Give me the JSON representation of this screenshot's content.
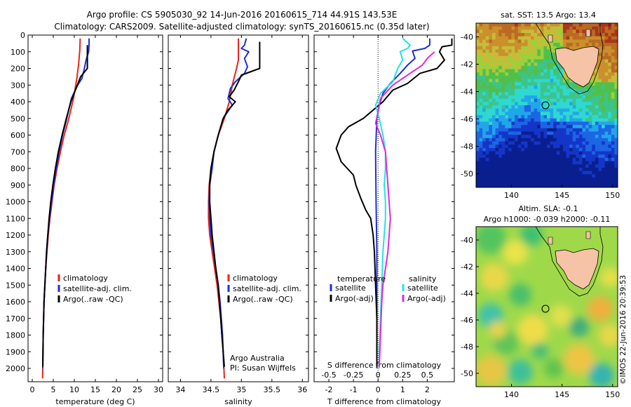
{
  "header": {
    "title_line1": "Argo profile: CS 5905030_92 14-Jun-2016 20160615_714 44.91S 143.53E",
    "title_line2": "Climatology: CARS2009. Satellite-adjusted climatology: synTS_20160615.nc (0.35d later)"
  },
  "credit": "©IMOS 22-Jun-2016 20:39:53",
  "colors": {
    "climatology": "#e8231b",
    "satellite": "#1d2fd6",
    "argo": "#000000",
    "salinity_satellite": "#22e2e6",
    "salinity_argo": "#e02ad8"
  },
  "chart_data": [
    {
      "type": "line",
      "name": "temperature-profile",
      "xlabel": "temperature (deg C)",
      "ylabel": "",
      "xlim": [
        -1,
        31
      ],
      "ylim": [
        2080,
        0
      ],
      "xticks": [
        0,
        5,
        10,
        15,
        20,
        25,
        30
      ],
      "yticks": [
        0,
        100,
        200,
        300,
        400,
        500,
        600,
        700,
        800,
        900,
        1000,
        1100,
        1200,
        1300,
        1400,
        1500,
        1600,
        1700,
        1800,
        1900,
        2000
      ],
      "legend": [
        "climatology",
        "satellite-adj. clim.",
        "Argo(..raw -QC)"
      ],
      "series": [
        {
          "name": "climatology",
          "color": "#e8231b",
          "points": [
            [
              11.4,
              20
            ],
            [
              11.3,
              90
            ],
            [
              11,
              180
            ],
            [
              10.6,
              260
            ],
            [
              9.8,
              380
            ],
            [
              8.7,
              500
            ],
            [
              7.6,
              600
            ],
            [
              6.7,
              700
            ],
            [
              5.9,
              800
            ],
            [
              5.2,
              900
            ],
            [
              4.7,
              1000
            ],
            [
              4.2,
              1100
            ],
            [
              3.8,
              1200
            ],
            [
              3.5,
              1300
            ],
            [
              3.2,
              1400
            ],
            [
              3,
              1500
            ],
            [
              2.8,
              1600
            ],
            [
              2.7,
              1700
            ],
            [
              2.6,
              1800
            ],
            [
              2.55,
              1900
            ],
            [
              2.5,
              2000
            ],
            [
              2.45,
              2060
            ]
          ]
        },
        {
          "name": "satellite-adj. clim.",
          "color": "#1d2fd6",
          "points": [
            [
              13.5,
              20
            ],
            [
              13.5,
              60
            ],
            [
              13.4,
              100
            ],
            [
              12.8,
              150
            ],
            [
              12.3,
              210
            ],
            [
              11.8,
              260
            ],
            [
              10.8,
              300
            ],
            [
              9.3,
              380
            ],
            [
              8.2,
              500
            ],
            [
              7.2,
              600
            ],
            [
              6.4,
              700
            ],
            [
              5.7,
              800
            ],
            [
              5.1,
              900
            ],
            [
              4.6,
              1000
            ],
            [
              4.1,
              1100
            ],
            [
              3.7,
              1200
            ],
            [
              3.4,
              1300
            ],
            [
              3.2,
              1400
            ],
            [
              3,
              1500
            ],
            [
              2.8,
              1600
            ],
            [
              2.7,
              1700
            ],
            [
              2.6,
              1800
            ],
            [
              2.55,
              1900
            ],
            [
              2.5,
              2000
            ]
          ]
        },
        {
          "name": "Argo(..raw -QC)",
          "color": "#000000",
          "points": [
            [
              13.1,
              60
            ],
            [
              13.1,
              200
            ],
            [
              11.5,
              250
            ],
            [
              10.4,
              320
            ],
            [
              9.2,
              400
            ],
            [
              8.1,
              500
            ],
            [
              7.1,
              600
            ],
            [
              6.2,
              700
            ],
            [
              5.5,
              800
            ],
            [
              4.9,
              900
            ],
            [
              4.4,
              1000
            ],
            [
              4,
              1100
            ],
            [
              3.7,
              1200
            ],
            [
              3.4,
              1300
            ],
            [
              3.2,
              1400
            ],
            [
              3,
              1500
            ],
            [
              2.8,
              1600
            ],
            [
              2.7,
              1700
            ],
            [
              2.6,
              1800
            ],
            [
              2.55,
              1900
            ],
            [
              2.5,
              1990
            ]
          ]
        }
      ]
    },
    {
      "type": "line",
      "name": "salinity-profile",
      "xlabel": "salinity",
      "xlim": [
        33.8,
        36.1
      ],
      "ylim": [
        2080,
        0
      ],
      "xticks": [
        34,
        34.5,
        35,
        35.5,
        36
      ],
      "legend": [
        "climatology",
        "satellite-adj. clim.",
        "Argo(..raw -QC)"
      ],
      "annotation": [
        "Argo Australia",
        "PI: Susan Wijffels"
      ],
      "series": [
        {
          "name": "climatology",
          "color": "#e8231b",
          "points": [
            [
              34.95,
              20
            ],
            [
              34.95,
              80
            ],
            [
              34.95,
              150
            ],
            [
              34.92,
              200
            ],
            [
              34.85,
              300
            ],
            [
              34.8,
              400
            ],
            [
              34.72,
              500
            ],
            [
              34.62,
              600
            ],
            [
              34.55,
              700
            ],
            [
              34.5,
              800
            ],
            [
              34.47,
              900
            ],
            [
              34.46,
              1000
            ],
            [
              34.46,
              1100
            ],
            [
              34.48,
              1200
            ],
            [
              34.52,
              1300
            ],
            [
              34.56,
              1400
            ],
            [
              34.6,
              1500
            ],
            [
              34.63,
              1600
            ],
            [
              34.66,
              1700
            ],
            [
              34.68,
              1800
            ],
            [
              34.7,
              1900
            ],
            [
              34.72,
              2060
            ]
          ]
        },
        {
          "name": "satellite-adj. clim.",
          "color": "#1d2fd6",
          "points": [
            [
              35.08,
              20
            ],
            [
              35.05,
              60
            ],
            [
              35,
              80
            ],
            [
              35.12,
              100
            ],
            [
              35.05,
              140
            ],
            [
              35.1,
              190
            ],
            [
              35.05,
              230
            ],
            [
              34.9,
              280
            ],
            [
              34.82,
              320
            ],
            [
              34.78,
              380
            ],
            [
              34.85,
              420
            ],
            [
              34.7,
              500
            ],
            [
              34.62,
              600
            ],
            [
              34.55,
              700
            ],
            [
              34.52,
              800
            ],
            [
              34.48,
              900
            ],
            [
              34.47,
              1000
            ],
            [
              34.48,
              1100
            ],
            [
              34.5,
              1200
            ],
            [
              34.54,
              1300
            ],
            [
              34.58,
              1400
            ],
            [
              34.62,
              1500
            ],
            [
              34.65,
              1600
            ],
            [
              34.67,
              1700
            ],
            [
              34.69,
              1800
            ],
            [
              34.7,
              1900
            ],
            [
              34.71,
              2000
            ]
          ]
        },
        {
          "name": "Argo(..raw -QC)",
          "color": "#000000",
          "points": [
            [
              35.3,
              40
            ],
            [
              35.3,
              200
            ],
            [
              35,
              240
            ],
            [
              34.95,
              280
            ],
            [
              34.88,
              330
            ],
            [
              34.8,
              370
            ],
            [
              34.9,
              400
            ],
            [
              34.78,
              450
            ],
            [
              34.7,
              500
            ],
            [
              34.62,
              600
            ],
            [
              34.55,
              700
            ],
            [
              34.5,
              800
            ],
            [
              34.48,
              900
            ],
            [
              34.48,
              1000
            ],
            [
              34.5,
              1100
            ],
            [
              34.52,
              1200
            ],
            [
              34.55,
              1300
            ],
            [
              34.58,
              1400
            ],
            [
              34.62,
              1500
            ],
            [
              34.64,
              1600
            ],
            [
              34.66,
              1700
            ],
            [
              34.68,
              1800
            ],
            [
              34.7,
              1900
            ],
            [
              34.72,
              1990
            ]
          ]
        }
      ]
    },
    {
      "type": "line",
      "name": "difference-profile",
      "xlabel": "T difference from climatology",
      "xlabel2": "S difference from climatology",
      "xlim": [
        -2.6,
        3.1
      ],
      "ylim": [
        2080,
        0
      ],
      "xticks": [
        -2,
        -1,
        0,
        1,
        2
      ],
      "xticks_s": [
        -0.5,
        -0.25,
        0,
        0.25,
        0.5
      ],
      "s_scale": 4,
      "legend_temperature_title": "temperature",
      "legend_salinity_title": "salinity",
      "legend": [
        "satellite",
        "Argo(-adj)",
        "satellite",
        "Argo(-adj)"
      ],
      "series": [
        {
          "name": "satellite",
          "group": "temperature",
          "color": "#1d2fd6",
          "points": [
            [
              2.1,
              20
            ],
            [
              2.1,
              60
            ],
            [
              1.9,
              80
            ],
            [
              1.4,
              95
            ],
            [
              1.5,
              140
            ],
            [
              1.2,
              180
            ],
            [
              0.9,
              230
            ],
            [
              0.5,
              290
            ],
            [
              0.2,
              350
            ],
            [
              0.05,
              420
            ],
            [
              -0.05,
              500
            ],
            [
              -0.1,
              700
            ],
            [
              -0.08,
              1000
            ],
            [
              -0.05,
              1300
            ],
            [
              -0.05,
              1600
            ],
            [
              -0.05,
              1900
            ],
            [
              -0.05,
              2000
            ]
          ]
        },
        {
          "name": "Argo(-adj)",
          "group": "temperature",
          "color": "#000000",
          "points": [
            [
              3.0,
              20
            ],
            [
              3.0,
              60
            ],
            [
              2.6,
              70
            ],
            [
              2.5,
              100
            ],
            [
              2.7,
              150
            ],
            [
              2.4,
              200
            ],
            [
              1.7,
              230
            ],
            [
              1.2,
              290
            ],
            [
              0.6,
              330
            ],
            [
              0.2,
              400
            ],
            [
              -0.6,
              500
            ],
            [
              -1.2,
              550
            ],
            [
              -1.5,
              600
            ],
            [
              -1.7,
              680
            ],
            [
              -1.5,
              760
            ],
            [
              -1.0,
              840
            ],
            [
              -0.9,
              900
            ],
            [
              -0.7,
              980
            ],
            [
              -0.5,
              1050
            ],
            [
              -0.3,
              1100
            ],
            [
              -0.2,
              1200
            ],
            [
              -0.15,
              1300
            ],
            [
              -0.1,
              1500
            ],
            [
              -0.05,
              1700
            ],
            [
              -0.05,
              1990
            ]
          ]
        },
        {
          "name": "satellite",
          "group": "salinity",
          "color": "#22e2e6",
          "points": [
            [
              1.0,
              20
            ],
            [
              1.3,
              60
            ],
            [
              1.2,
              80
            ],
            [
              0.9,
              100
            ],
            [
              1.0,
              150
            ],
            [
              0.8,
              200
            ],
            [
              0.6,
              280
            ],
            [
              0.1,
              350
            ],
            [
              -0.1,
              420
            ],
            [
              0.05,
              500
            ],
            [
              0.2,
              600
            ],
            [
              0.3,
              700
            ],
            [
              0.3,
              800
            ],
            [
              0.25,
              900
            ],
            [
              0.3,
              1000
            ],
            [
              0.3,
              1100
            ],
            [
              0.25,
              1200
            ],
            [
              0.2,
              1300
            ],
            [
              0.15,
              1500
            ],
            [
              0.1,
              1700
            ],
            [
              0.05,
              1900
            ],
            [
              0.05,
              2000
            ]
          ]
        },
        {
          "name": "Argo(-adj)",
          "group": "salinity",
          "color": "#e02ad8",
          "points": [
            [
              2.3,
              100
            ],
            [
              2.0,
              140
            ],
            [
              1.8,
              180
            ],
            [
              1.3,
              230
            ],
            [
              0.6,
              300
            ],
            [
              0.1,
              380
            ],
            [
              0.0,
              460
            ],
            [
              -0.1,
              530
            ],
            [
              0.1,
              600
            ],
            [
              0.3,
              700
            ],
            [
              0.35,
              800
            ],
            [
              0.4,
              900
            ],
            [
              0.45,
              1000
            ],
            [
              0.5,
              1100
            ],
            [
              0.45,
              1200
            ],
            [
              0.4,
              1300
            ],
            [
              0.3,
              1400
            ],
            [
              0.2,
              1500
            ],
            [
              0.15,
              1600
            ],
            [
              0.1,
              1800
            ],
            [
              0.05,
              1990
            ]
          ]
        }
      ]
    },
    {
      "type": "heatmap",
      "name": "sst-map",
      "title": "sat. SST: 13.5 Argo: 13.4",
      "xlim": [
        136.5,
        150.5
      ],
      "ylim": [
        -51,
        -39
      ],
      "xticks": [
        140,
        145,
        150
      ],
      "yticks": [
        -40,
        -42,
        -44,
        -46,
        -48,
        -50
      ],
      "argo_position": [
        143.53,
        -44.91
      ]
    },
    {
      "type": "heatmap",
      "name": "sla-map",
      "title": "Altim. SLA: -0.1",
      "subtitle": "Argo h1000: -0.039 h2000: -0.11",
      "xlim": [
        136.5,
        150.5
      ],
      "ylim": [
        -51,
        -39
      ],
      "xticks": [
        140,
        145,
        150
      ],
      "yticks": [
        -40,
        -42,
        -44,
        -46,
        -48,
        -50
      ],
      "argo_position": [
        143.53,
        -44.91
      ]
    }
  ]
}
